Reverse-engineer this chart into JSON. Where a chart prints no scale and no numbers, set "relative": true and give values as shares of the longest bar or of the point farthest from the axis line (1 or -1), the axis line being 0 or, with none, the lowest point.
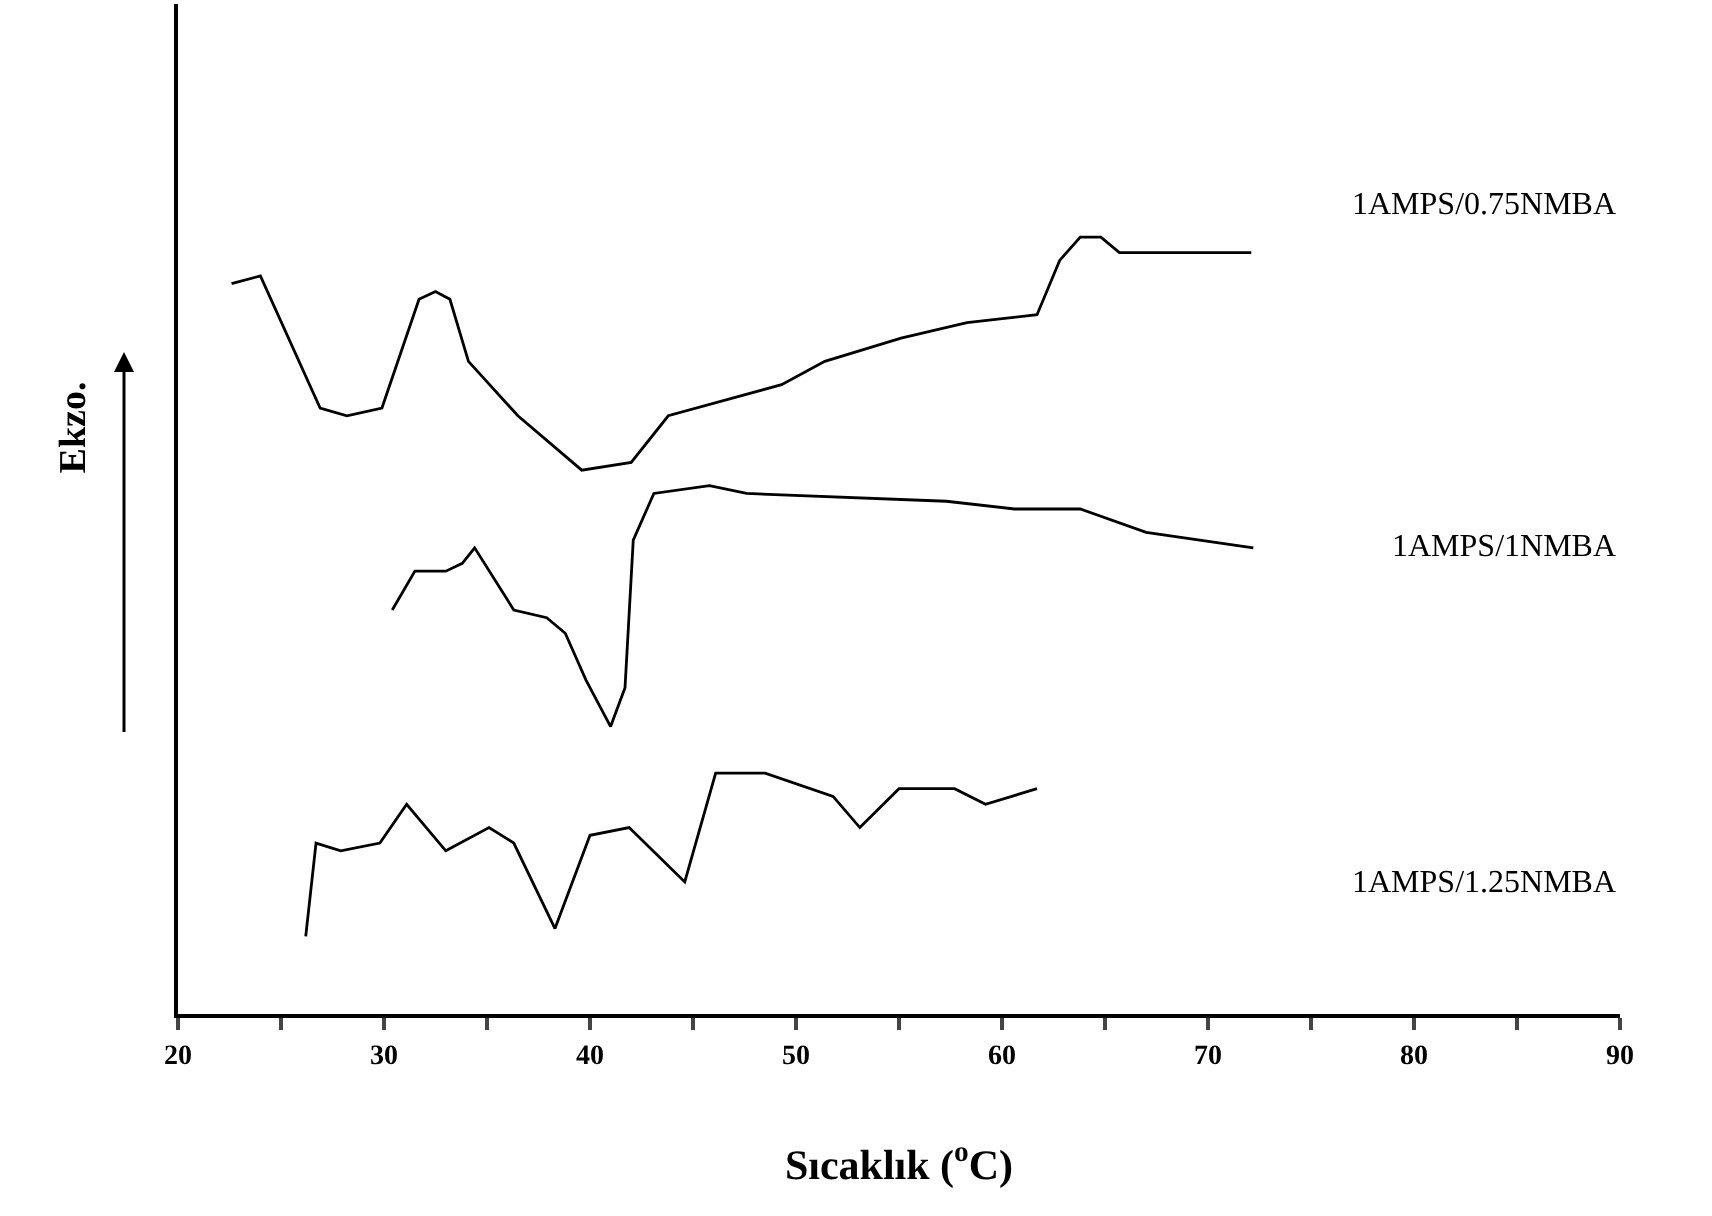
{
  "chart_data": {
    "type": "line",
    "relative": true,
    "xlabel": "Sıcaklık ($^{o}$C)",
    "ylabel": "Ekzo.",
    "legend": false,
    "grid": false,
    "marker": "none",
    "line_style": "solid",
    "xlim": [
      20,
      90
    ],
    "xticks": [
      20,
      {
        "value": 25,
        "label": null
      },
      30,
      {
        "value": 35,
        "label": null
      },
      40,
      {
        "value": 45,
        "label": null
      },
      50,
      {
        "value": 55,
        "label": null
      },
      60,
      {
        "value": 65,
        "label": null
      },
      70,
      {
        "value": 75,
        "label": null
      },
      80,
      {
        "value": 85,
        "label": null
      },
      90
    ],
    "series": [
      {
        "name": "1AMPS/0.75NMBA",
        "color": "#000000",
        "x": [
          22.6,
          24.0,
          26.9,
          28.2,
          29.9,
          31.7,
          32.5,
          33.2,
          34.1,
          36.5,
          39.6,
          42.0,
          43.8,
          49.3,
          51.4,
          55.1,
          58.3,
          61.7,
          62.8,
          63.8,
          64.8,
          65.7,
          68.6,
          72.1
        ],
        "values": [
          0.94,
          0.95,
          0.78,
          0.77,
          0.78,
          0.92,
          0.93,
          0.92,
          0.84,
          0.77,
          0.7,
          0.71,
          0.77,
          0.81,
          0.84,
          0.87,
          0.89,
          0.9,
          0.97,
          1.0,
          1.0,
          0.98,
          0.98,
          0.98
        ]
      },
      {
        "name": "1AMPS/1NMBA",
        "color": "#000000",
        "x": [
          30.4,
          31.5,
          33.0,
          33.8,
          34.4,
          36.3,
          37.9,
          38.8,
          39.8,
          41.0,
          41.7,
          42.1,
          43.1,
          45.8,
          47.6,
          57.3,
          60.6,
          63.8,
          67.0,
          72.2
        ],
        "values": [
          0.52,
          0.57,
          0.57,
          0.58,
          0.6,
          0.52,
          0.51,
          0.49,
          0.43,
          0.37,
          0.42,
          0.61,
          0.67,
          0.68,
          0.67,
          0.66,
          0.65,
          0.65,
          0.62,
          0.6
        ]
      },
      {
        "name": "1AMPS/1.25NMBA",
        "color": "#000000",
        "x": [
          26.2,
          26.7,
          27.9,
          29.8,
          31.1,
          33.0,
          35.1,
          36.3,
          38.3,
          40.0,
          41.9,
          44.6,
          46.1,
          48.5,
          51.8,
          53.1,
          55.0,
          57.7,
          59.2,
          61.7
        ],
        "values": [
          0.1,
          0.22,
          0.21,
          0.22,
          0.27,
          0.21,
          0.24,
          0.22,
          0.11,
          0.23,
          0.24,
          0.17,
          0.31,
          0.31,
          0.28,
          0.24,
          0.29,
          0.29,
          0.27,
          0.29
        ]
      }
    ]
  }
}
